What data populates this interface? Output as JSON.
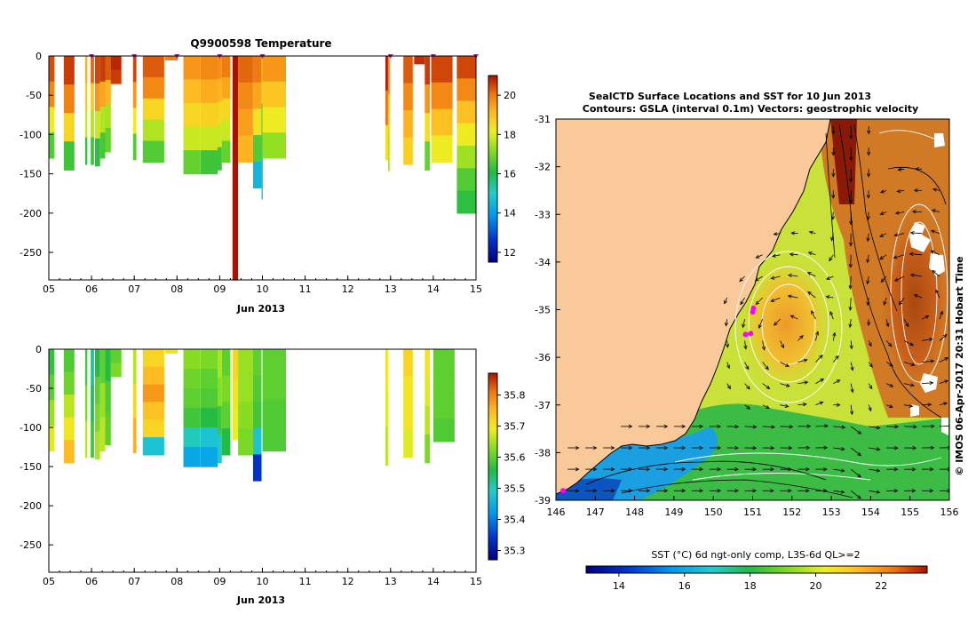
{
  "chart_data": [
    {
      "type": "heatmap",
      "panel": "temperature-section",
      "title": "Q9900598  Temperature",
      "xlabel": "Jun 2013",
      "xlim": [
        5,
        15
      ],
      "ylim": [
        -285,
        0
      ],
      "x_ticks": [
        "05",
        "06",
        "07",
        "08",
        "09",
        "10",
        "11",
        "12",
        "13",
        "14",
        "15"
      ],
      "y_ticks": [
        "0",
        "-50",
        "-100",
        "-150",
        "-200",
        "-250"
      ],
      "y_tick_values": [
        0,
        -50,
        -100,
        -150,
        -200,
        -250
      ],
      "colorbar": {
        "min": 11.5,
        "max": 21,
        "ticks": [
          "12",
          "14",
          "16",
          "18",
          "20"
        ],
        "tick_values": [
          12,
          14,
          16,
          18,
          20
        ]
      },
      "surface_markers": [
        6,
        7,
        8,
        9,
        10,
        13,
        14,
        15
      ],
      "profiles": [
        {
          "x": 5.0,
          "w": 0.13,
          "bottom": -130,
          "v": [
            20.4,
            19.8,
            18.2,
            16.6
          ]
        },
        {
          "x": 5.35,
          "w": 0.25,
          "bottom": -145,
          "v": [
            20.6,
            19.9,
            18.6,
            16.4
          ]
        },
        {
          "x": 5.85,
          "w": 0.05,
          "bottom": -138,
          "v": [
            19.3,
            18.8,
            17.8,
            16.2
          ]
        },
        {
          "x": 5.98,
          "w": 0.08,
          "bottom": -138,
          "v": [
            20.2,
            18.8,
            17.6,
            16.4
          ]
        },
        {
          "x": 6.08,
          "w": 0.12,
          "bottom": -140,
          "v": [
            20.5,
            19.6,
            17.8,
            16.2
          ]
        },
        {
          "x": 6.2,
          "w": 0.12,
          "bottom": -130,
          "v": [
            20.6,
            19.4,
            17.6,
            16.5
          ]
        },
        {
          "x": 6.32,
          "w": 0.13,
          "bottom": -122,
          "v": [
            20.3,
            19.2,
            17.5,
            16.8
          ]
        },
        {
          "x": 6.45,
          "w": 0.25,
          "bottom": -35,
          "v": [
            20.8,
            20.6
          ]
        },
        {
          "x": 6.97,
          "w": 0.08,
          "bottom": -132,
          "v": [
            20.5,
            19.6,
            18.2,
            16.6
          ]
        },
        {
          "x": 7.2,
          "w": 0.5,
          "bottom": -135,
          "v": [
            20.3,
            19.8,
            18.6,
            17.6,
            16.6
          ]
        },
        {
          "x": 7.72,
          "w": 0.3,
          "bottom": -5,
          "v": [
            19.9
          ]
        },
        {
          "x": 8.15,
          "w": 0.4,
          "bottom": -150,
          "v": [
            19.6,
            19.1,
            18.6,
            17.8,
            16.8
          ]
        },
        {
          "x": 8.55,
          "w": 0.4,
          "bottom": -150,
          "v": [
            19.8,
            19.3,
            18.7,
            17.8,
            16.4
          ]
        },
        {
          "x": 8.95,
          "w": 0.1,
          "bottom": -145,
          "v": [
            19.7,
            19.2,
            18.6,
            17.8,
            16.4
          ]
        },
        {
          "x": 9.05,
          "w": 0.2,
          "bottom": -135,
          "v": [
            20.0,
            19.4,
            18.6,
            17.8,
            16.8
          ]
        },
        {
          "x": 9.3,
          "w": 0.13,
          "bottom": -285,
          "v": [
            21.0,
            21.0
          ]
        },
        {
          "x": 9.43,
          "w": 0.35,
          "bottom": -135,
          "v": [
            20.2,
            19.8,
            19.5,
            19.2
          ]
        },
        {
          "x": 9.78,
          "w": 0.2,
          "bottom": -168,
          "v": [
            20.0,
            19.4,
            18.4,
            16.6,
            14.5
          ]
        },
        {
          "x": 9.98,
          "w": 0.02,
          "bottom": -182,
          "v": [
            18.5,
            16.6,
            15.0
          ]
        },
        {
          "x": 10.0,
          "w": 0.55,
          "bottom": -130,
          "v": [
            19.6,
            18.9,
            18.2,
            17.3
          ]
        },
        {
          "x": 12.88,
          "w": 0.06,
          "bottom": -132,
          "v": [
            20.9,
            20.1,
            18.4
          ]
        },
        {
          "x": 12.94,
          "w": 0.04,
          "bottom": -146,
          "v": [
            19.8,
            18.8,
            17.6
          ]
        },
        {
          "x": 13.3,
          "w": 0.22,
          "bottom": -138,
          "v": [
            20.3,
            19.8,
            19.2,
            18.7
          ]
        },
        {
          "x": 13.55,
          "w": 0.25,
          "bottom": -10,
          "v": [
            20.7
          ]
        },
        {
          "x": 13.8,
          "w": 0.12,
          "bottom": -145,
          "v": [
            20.6,
            19.6,
            18.4,
            16.8
          ]
        },
        {
          "x": 13.95,
          "w": 0.5,
          "bottom": -135,
          "v": [
            20.5,
            19.8,
            19.0,
            18.2
          ]
        },
        {
          "x": 14.55,
          "w": 0.45,
          "bottom": -200,
          "v": [
            20.5,
            19.8,
            19.0,
            18.2,
            17.4,
            16.6,
            16.2
          ]
        }
      ]
    },
    {
      "type": "heatmap",
      "panel": "salinity-section",
      "title": "",
      "xlabel": "Jun 2013",
      "xlim": [
        5,
        15
      ],
      "ylim": [
        -285,
        0
      ],
      "x_ticks": [
        "05",
        "06",
        "07",
        "08",
        "09",
        "10",
        "11",
        "12",
        "13",
        "14",
        "15"
      ],
      "y_ticks": [
        "0",
        "-50",
        "-100",
        "-150",
        "-200",
        "-250"
      ],
      "y_tick_values": [
        0,
        -50,
        -100,
        -150,
        -200,
        -250
      ],
      "colorbar": {
        "min": 35.27,
        "max": 35.87,
        "ticks": [
          "35.3",
          "35.4",
          "35.5",
          "35.6",
          "35.7",
          "35.8"
        ],
        "tick_values": [
          35.3,
          35.4,
          35.5,
          35.6,
          35.7,
          35.8
        ]
      },
      "profiles": [
        {
          "x": 5.0,
          "w": 0.13,
          "bottom": -130,
          "v": [
            35.57,
            35.6,
            35.64,
            35.68
          ]
        },
        {
          "x": 5.35,
          "w": 0.25,
          "bottom": -145,
          "v": [
            35.59,
            35.61,
            35.66,
            35.7,
            35.75
          ]
        },
        {
          "x": 5.85,
          "w": 0.05,
          "bottom": -138,
          "v": [
            35.58,
            35.62,
            35.66
          ]
        },
        {
          "x": 5.98,
          "w": 0.08,
          "bottom": -138,
          "v": [
            35.52,
            35.55,
            35.58
          ]
        },
        {
          "x": 6.08,
          "w": 0.12,
          "bottom": -140,
          "v": [
            35.56,
            35.6,
            35.62,
            35.65
          ]
        },
        {
          "x": 6.2,
          "w": 0.12,
          "bottom": -130,
          "v": [
            35.6,
            35.64,
            35.66
          ]
        },
        {
          "x": 6.32,
          "w": 0.13,
          "bottom": -122,
          "v": [
            35.56,
            35.59,
            35.6
          ]
        },
        {
          "x": 6.45,
          "w": 0.25,
          "bottom": -35,
          "v": [
            35.6,
            35.62
          ]
        },
        {
          "x": 6.97,
          "w": 0.08,
          "bottom": -132,
          "v": [
            35.66,
            35.72,
            35.76
          ]
        },
        {
          "x": 7.2,
          "w": 0.5,
          "bottom": -135,
          "v": [
            35.72,
            35.75,
            35.78,
            35.74,
            35.72,
            35.48
          ]
        },
        {
          "x": 7.72,
          "w": 0.3,
          "bottom": -5,
          "v": [
            35.7
          ]
        },
        {
          "x": 8.15,
          "w": 0.4,
          "bottom": -150,
          "v": [
            35.63,
            35.61,
            35.6,
            35.58,
            35.5,
            35.44
          ]
        },
        {
          "x": 8.55,
          "w": 0.4,
          "bottom": -150,
          "v": [
            35.62,
            35.6,
            35.59,
            35.56,
            35.48,
            35.44
          ]
        },
        {
          "x": 8.95,
          "w": 0.1,
          "bottom": -145,
          "v": [
            35.65,
            35.63,
            35.58,
            35.5
          ]
        },
        {
          "x": 9.05,
          "w": 0.2,
          "bottom": -135,
          "v": [
            35.6,
            35.62,
            35.6,
            35.56
          ]
        },
        {
          "x": 9.3,
          "w": 0.13,
          "bottom": -115,
          "v": [
            35.72,
            35.7,
            35.69
          ]
        },
        {
          "x": 9.43,
          "w": 0.35,
          "bottom": -135,
          "v": [
            35.64,
            35.64,
            35.63,
            35.62
          ]
        },
        {
          "x": 9.78,
          "w": 0.2,
          "bottom": -168,
          "v": [
            35.6,
            35.59,
            35.58,
            35.48,
            35.34
          ]
        },
        {
          "x": 10.0,
          "w": 0.55,
          "bottom": -130,
          "v": [
            35.6,
            35.6,
            35.59,
            35.59
          ]
        },
        {
          "x": 12.88,
          "w": 0.06,
          "bottom": -148,
          "v": [
            35.7,
            35.68,
            35.66
          ]
        },
        {
          "x": 13.3,
          "w": 0.22,
          "bottom": -138,
          "v": [
            35.72,
            35.7,
            35.7,
            35.68
          ]
        },
        {
          "x": 13.8,
          "w": 0.12,
          "bottom": -145,
          "v": [
            35.7,
            35.68,
            35.66,
            35.62
          ]
        },
        {
          "x": 14.0,
          "w": 0.5,
          "bottom": -118,
          "v": [
            35.6,
            35.6,
            35.6,
            35.59
          ]
        }
      ]
    },
    {
      "type": "heatmap",
      "panel": "sst-map",
      "title_line1": "SealCTD Surface Locations and SST for 10 Jun 2013",
      "title_line2": "Contours: GSLA (interval 0.1m) Vectors: geostrophic velocity",
      "xlim": [
        146,
        156
      ],
      "ylim": [
        -39,
        -31
      ],
      "x_ticks": [
        "146",
        "147",
        "148",
        "149",
        "150",
        "151",
        "152",
        "153",
        "154",
        "155",
        "156"
      ],
      "y_ticks": [
        "-31",
        "-32",
        "-33",
        "-34",
        "-35",
        "-36",
        "-37",
        "-38",
        "-39"
      ],
      "colorbar": {
        "label": "SST (°C) 6d ngt-only comp, L3S-6d QL>=2",
        "min": 13,
        "max": 23.4,
        "ticks": [
          "14",
          "16",
          "18",
          "20",
          "22"
        ],
        "tick_values": [
          14,
          16,
          18,
          20,
          22
        ]
      },
      "seal_locations": [
        [
          150.82,
          -35.52
        ],
        [
          150.95,
          -35.5
        ],
        [
          151.0,
          -35.05
        ],
        [
          151.02,
          -34.97
        ],
        [
          146.18,
          -38.8
        ]
      ],
      "credit": "© IMOS 06-Apr-2017 20:31 Hobart Time"
    }
  ]
}
